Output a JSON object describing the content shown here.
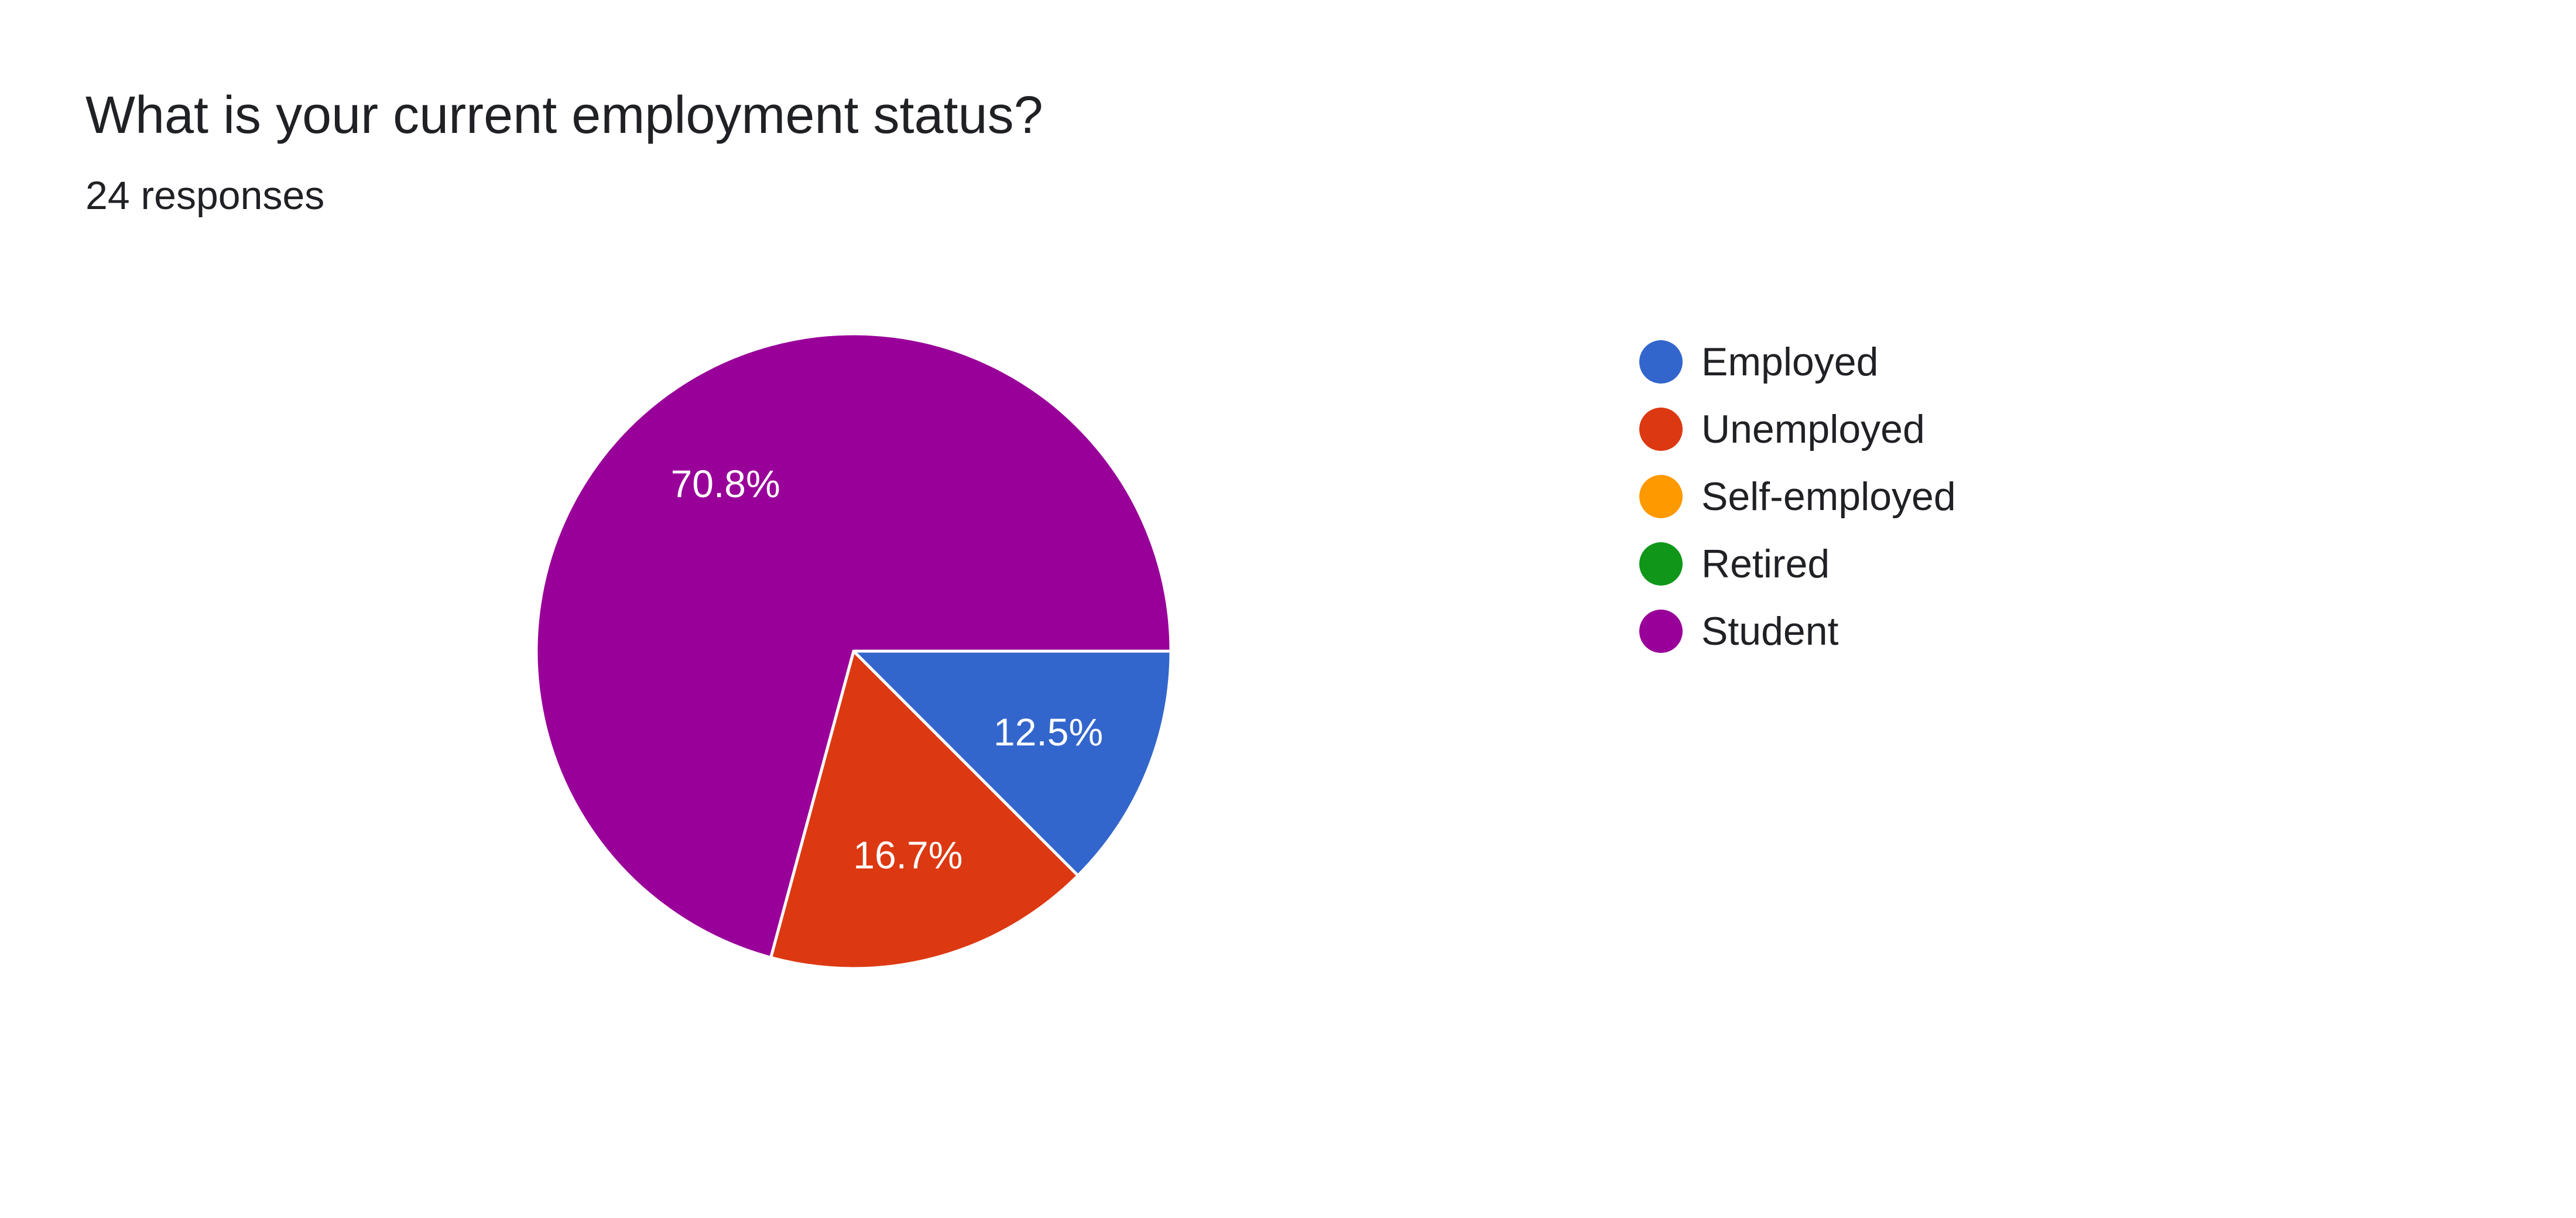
{
  "header": {
    "title": "What is your current employment status?",
    "responses": "24 responses"
  },
  "chart_data": {
    "type": "pie",
    "categories": [
      "Employed",
      "Unemployed",
      "Self-employed",
      "Retired",
      "Student"
    ],
    "values": [
      12.5,
      16.7,
      0,
      0,
      70.8
    ],
    "labels": [
      "12.5%",
      "16.7%",
      "",
      "",
      "70.8%"
    ],
    "colors": [
      "#3366cc",
      "#dc3912",
      "#ff9900",
      "#109618",
      "#990099"
    ],
    "legend_position": "right"
  }
}
